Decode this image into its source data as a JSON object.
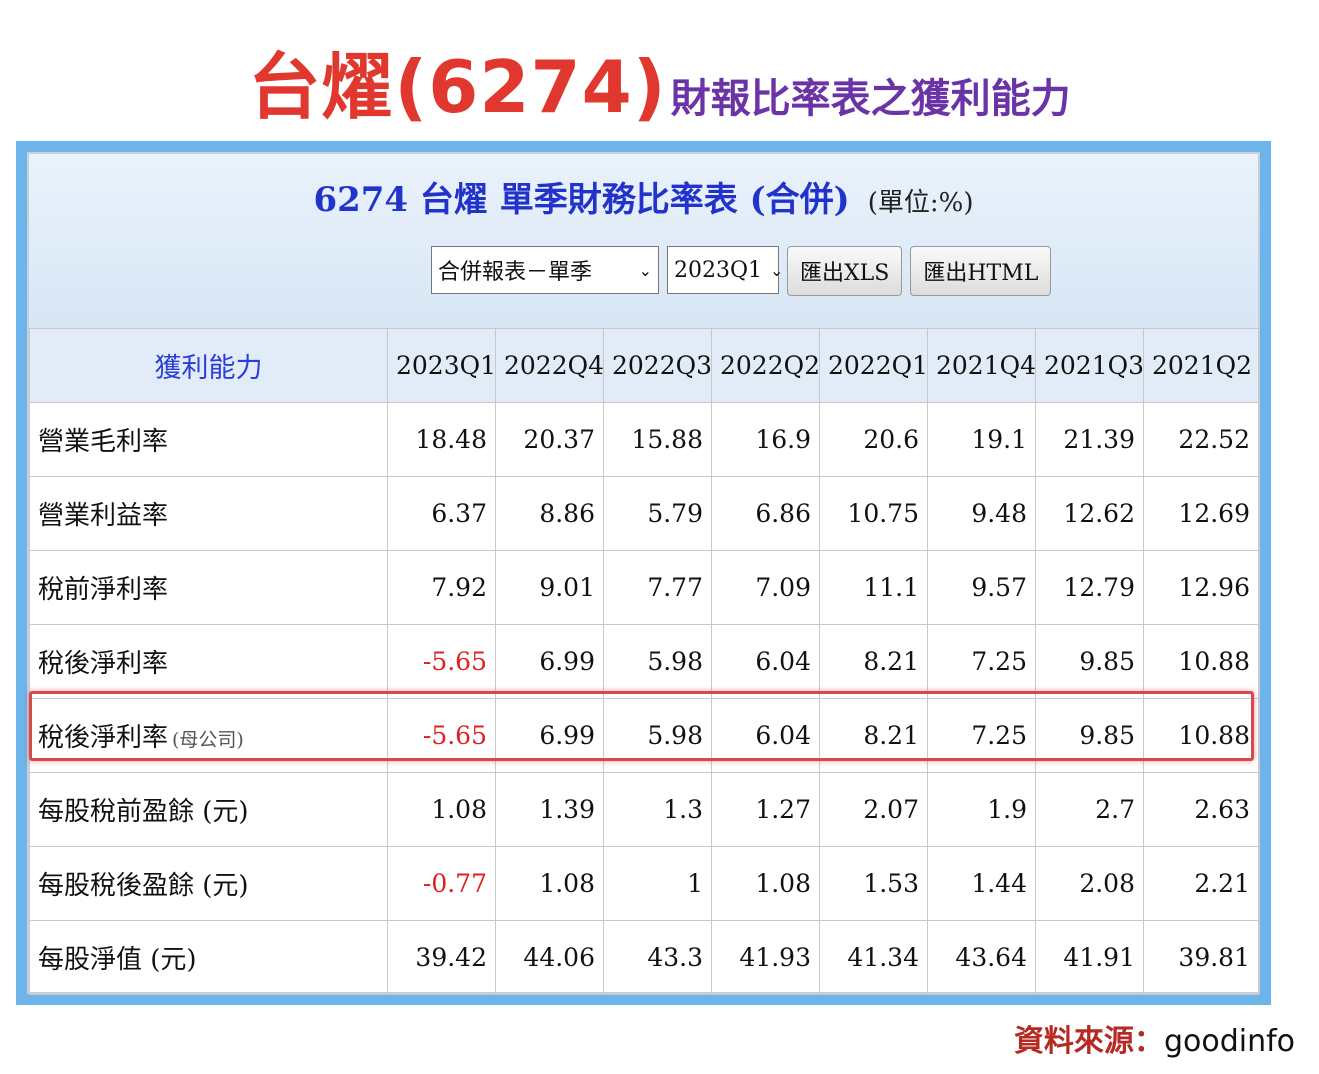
{
  "headline": {
    "main": "台燿(6274)",
    "sub": "財報比率表之獲利能力"
  },
  "panel": {
    "title": "6274 台燿 單季財務比率表 (合併)",
    "unit": "(單位:%)",
    "controls": {
      "report_type": "合併報表－單季",
      "period": "2023Q1",
      "export_xls": "匯出XLS",
      "export_html": "匯出HTML"
    }
  },
  "table": {
    "header": [
      "獲利能力",
      "2023Q1",
      "2022Q4",
      "2022Q3",
      "2022Q2",
      "2022Q1",
      "2021Q4",
      "2021Q3",
      "2021Q2"
    ],
    "rows": [
      {
        "label": "營業毛利率",
        "note": "",
        "values": [
          "18.48",
          "20.37",
          "15.88",
          "16.9",
          "20.6",
          "19.1",
          "21.39",
          "22.52"
        ]
      },
      {
        "label": "營業利益率",
        "note": "",
        "values": [
          "6.37",
          "8.86",
          "5.79",
          "6.86",
          "10.75",
          "9.48",
          "12.62",
          "12.69"
        ]
      },
      {
        "label": "稅前淨利率",
        "note": "",
        "values": [
          "7.92",
          "9.01",
          "7.77",
          "7.09",
          "11.1",
          "9.57",
          "12.79",
          "12.96"
        ]
      },
      {
        "label": "稅後淨利率",
        "note": "",
        "values": [
          "-5.65",
          "6.99",
          "5.98",
          "6.04",
          "8.21",
          "7.25",
          "9.85",
          "10.88"
        ]
      },
      {
        "label": "稅後淨利率",
        "note": "(母公司)",
        "values": [
          "-5.65",
          "6.99",
          "5.98",
          "6.04",
          "8.21",
          "7.25",
          "9.85",
          "10.88"
        ]
      },
      {
        "label": "每股稅前盈餘 (元)",
        "note": "",
        "values": [
          "1.08",
          "1.39",
          "1.3",
          "1.27",
          "2.07",
          "1.9",
          "2.7",
          "2.63"
        ]
      },
      {
        "label": "每股稅後盈餘 (元)",
        "note": "",
        "values": [
          "-0.77",
          "1.08",
          "1",
          "1.08",
          "1.53",
          "1.44",
          "2.08",
          "2.21"
        ]
      },
      {
        "label": "每股淨值 (元)",
        "note": "",
        "values": [
          "39.42",
          "44.06",
          "43.3",
          "41.93",
          "41.34",
          "43.64",
          "41.91",
          "39.81"
        ]
      }
    ]
  },
  "source": {
    "label": "資料來源：",
    "value": "goodinfo"
  },
  "colors": {
    "headline_red": "#e0382e",
    "headline_purple": "#6a34a6",
    "frame_blue": "#6cb4ea",
    "negative_red": "#e02020",
    "highlight_red": "#d9484a",
    "title_blue": "#2233cc"
  }
}
